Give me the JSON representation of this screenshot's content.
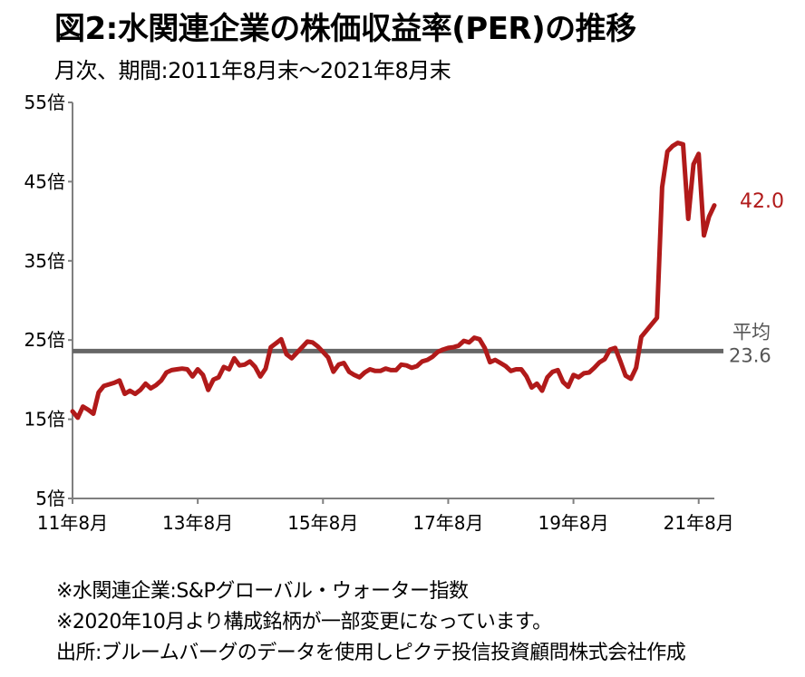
{
  "title": "図2:水関連企業の株価収益率(PER)の推移",
  "subtitle": "月次、期間:2011年8月末～2021年8月末",
  "notes": [
    "※水関連企業:S&Pグローバル・ウォーター指数",
    "※2020年10月より構成銘柄が一部変更になっています。",
    "出所:ブルームバーグのデータを使用しピクテ投信投資顧問株式会社作成"
  ],
  "colors": {
    "series": "#b11a1a",
    "average": "#666666",
    "axis": "#7f7f7f"
  },
  "chart_data": {
    "type": "line",
    "title": "図2:水関連企業の株価収益率(PER)の推移",
    "subtitle": "月次、期間:2011年8月末～2021年8月末",
    "x_tick_labels": [
      "11年8月",
      "13年8月",
      "15年8月",
      "17年8月",
      "19年8月",
      "21年8月"
    ],
    "y_tick_labels": [
      "5倍",
      "15倍",
      "25倍",
      "35倍",
      "45倍",
      "55倍"
    ],
    "y_ticks": [
      5,
      15,
      25,
      35,
      45,
      55
    ],
    "ylim": [
      5,
      55
    ],
    "x_start": "2011-08",
    "x_end": "2021-08",
    "grid": false,
    "series": [
      {
        "values": [
          16.0,
          15.2,
          16.6,
          16.2,
          15.7,
          18.4,
          19.2,
          19.4,
          19.6,
          19.9,
          18.2,
          18.6,
          18.2,
          18.7,
          19.5,
          18.9,
          19.3,
          19.9,
          20.9,
          21.2,
          21.3,
          21.4,
          21.3,
          20.4,
          21.3,
          20.6,
          18.7,
          20.0,
          20.3,
          21.6,
          21.3,
          22.7,
          21.8,
          21.9,
          22.3,
          21.6,
          20.4,
          21.4,
          24.1,
          24.6,
          25.1,
          23.2,
          22.7,
          23.4,
          24.1,
          24.8,
          24.7,
          24.2,
          23.5,
          22.8,
          21.0,
          21.9,
          22.1,
          21.0,
          20.6,
          20.3,
          20.9,
          21.3,
          21.1,
          21.1,
          21.4,
          21.2,
          21.2,
          21.9,
          21.8,
          21.5,
          21.7,
          22.3,
          22.5,
          22.9,
          23.5,
          23.8,
          24.0,
          24.1,
          24.3,
          24.9,
          24.7,
          25.3,
          25.1,
          24.0,
          22.2,
          22.5,
          22.1,
          21.7,
          21.1,
          21.3,
          21.3,
          20.4,
          19.0,
          19.5,
          18.6,
          20.3,
          21.0,
          21.2,
          19.7,
          19.1,
          20.6,
          20.3,
          20.8,
          20.9,
          21.5,
          22.2,
          22.6,
          23.8,
          24.0,
          22.3,
          20.5,
          20.1,
          21.5,
          25.4,
          26.2,
          27.0,
          27.8,
          44.3,
          48.8,
          49.5,
          49.9,
          49.7,
          40.3,
          47.2,
          48.5,
          38.2,
          40.6,
          42.0
        ],
        "end_label": "42.0"
      }
    ],
    "reference_line": {
      "value": 23.6,
      "label": "平均",
      "value_label": "23.6"
    }
  }
}
